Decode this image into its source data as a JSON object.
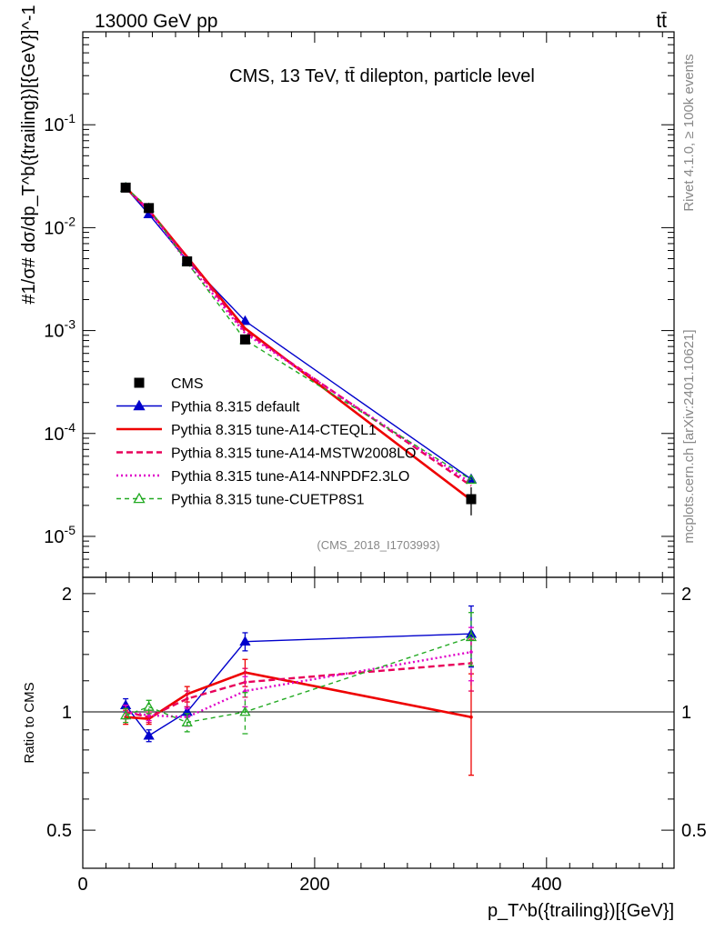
{
  "header": {
    "energy": "13000 GeV pp",
    "process": "tt̄"
  },
  "side_labels": {
    "rivet": "Rivet 4.1.0, ≥ 100k events",
    "mcplots": "mcplots.cern.ch [arXiv:2401.10621]"
  },
  "colors": {
    "cms": "#000000",
    "default": "#0000cc",
    "a14_cteql1": "#ee0000",
    "a14_mstw": "#e8005a",
    "a14_nnpdf": "#e000c8",
    "cuetp8s1": "#22aa22"
  },
  "chart_data": {
    "type": "line",
    "title": "CMS, 13 TeV, tt̄ dilepton, particle level",
    "watermark": "(CMS_2018_I1703993)",
    "xlabel": "p_T^b({trailing})[{GeV}]",
    "ylabel": "#1/σ# dσ/dp_T^b({trailing})[{GeV}]^-1",
    "ratio_ylabel": "Ratio to CMS",
    "xlim": [
      0,
      510
    ],
    "ylim": [
      4e-06,
      0.8
    ],
    "yscale": "log",
    "ratio_ylim": [
      0.4,
      2.2
    ],
    "ratio_yscale": "log",
    "x_ticks": [
      "0",
      "200",
      "400"
    ],
    "x_tick_values": [
      0,
      200,
      400
    ],
    "y_ticks": [
      "10^-5",
      "10^-4",
      "10^-3",
      "10^-2",
      "10^-1"
    ],
    "y_tick_values": [
      1e-05,
      0.0001,
      0.001,
      0.01,
      0.1
    ],
    "ratio_ticks": [
      "0.5",
      "1",
      "2"
    ],
    "ratio_tick_values": [
      0.5,
      1,
      2
    ],
    "x": [
      37,
      57,
      90,
      140,
      335
    ],
    "series": [
      {
        "key": "cms",
        "name": "CMS",
        "style": "data",
        "marker": "square",
        "values": [
          0.0245,
          0.0155,
          0.0047,
          0.00082,
          2.3e-05
        ],
        "errors": [
          0.001,
          0.0008,
          0.0003,
          7e-05,
          7e-06
        ]
      },
      {
        "key": "default",
        "name": "Pythia 8.315 default",
        "style": "solid",
        "marker": "triangle-filled",
        "values": [
          0.0245,
          0.0135,
          0.0048,
          0.00124,
          3.6e-05
        ],
        "ratio": [
          1.04,
          0.87,
          1.0,
          1.51,
          1.58
        ],
        "ratio_err": [
          0.04,
          0.03,
          0.03,
          0.08,
          0.28
        ]
      },
      {
        "key": "a14_cteql1",
        "name": "Pythia 8.315 tune-A14-CTEQL1",
        "style": "solid-thick",
        "marker": "none",
        "values": [
          0.0245,
          0.0148,
          0.0052,
          0.00105,
          2.25e-05
        ],
        "ratio": [
          0.97,
          0.96,
          1.11,
          1.26,
          0.97
        ],
        "ratio_err": [
          0.04,
          0.03,
          0.05,
          0.1,
          0.28
        ]
      },
      {
        "key": "a14_mstw",
        "name": "Pythia 8.315 tune-A14-MSTW2008LO",
        "style": "dashed",
        "marker": "none",
        "values": [
          0.0245,
          0.0147,
          0.0051,
          0.00098,
          3.1e-05
        ],
        "ratio": [
          1.0,
          0.97,
          1.08,
          1.19,
          1.33
        ],
        "ratio_err": [
          0.04,
          0.03,
          0.05,
          0.1,
          0.2
        ]
      },
      {
        "key": "a14_nnpdf",
        "name": "Pythia 8.315 tune-A14-NNPDF2.3LO",
        "style": "dotted",
        "marker": "none",
        "values": [
          0.0245,
          0.0149,
          0.0046,
          0.00094,
          3.3e-05
        ],
        "ratio": [
          1.0,
          0.98,
          0.97,
          1.13,
          1.42
        ],
        "ratio_err": [
          0.04,
          0.03,
          0.05,
          0.1,
          0.22
        ]
      },
      {
        "key": "cuetp8s1",
        "name": "Pythia 8.315 tune-CUETP8S1",
        "style": "dashed-thin",
        "marker": "triangle-open",
        "values": [
          0.0245,
          0.0155,
          0.0046,
          0.00081,
          3.55e-05
        ],
        "ratio": [
          0.98,
          1.03,
          0.94,
          1.0,
          1.55
        ],
        "ratio_err": [
          0.04,
          0.04,
          0.05,
          0.12,
          0.24
        ]
      }
    ],
    "cms_ratio_err": [
      0.05,
      0.05,
      0.07,
      0.09,
      0.3
    ]
  }
}
